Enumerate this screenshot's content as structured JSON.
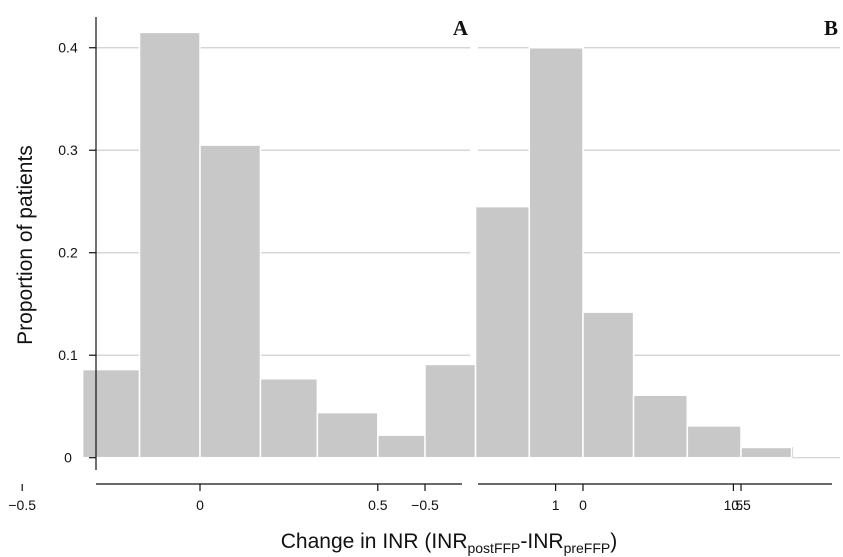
{
  "chart_data": [
    {
      "type": "bar",
      "panel": "A",
      "bin_edges": [
        -0.33,
        -0.17,
        0.0,
        0.17,
        0.33,
        0.5,
        0.67,
        0.83,
        1.0,
        1.17,
        1.33,
        1.5,
        1.67
      ],
      "values": [
        0.086,
        0.415,
        0.305,
        0.077,
        0.044,
        0.022,
        0.011,
        0.011,
        0.0,
        0.022,
        0.0,
        0.011
      ],
      "xlim": [
        -0.7,
        1.7
      ],
      "ylim": [
        -0.012,
        0.43
      ],
      "x_ticks": [
        -0.5,
        0,
        0.5,
        1,
        1.5
      ],
      "x_tick_labels": [
        "−0.5",
        "0",
        "0.5",
        "1",
        "1.5"
      ],
      "y_ticks": [
        0,
        0.1,
        0.2,
        0.3,
        0.4
      ],
      "y_tick_labels": [
        "0",
        "0.1",
        "0.2",
        "0.3",
        "0.4"
      ],
      "grid": true
    },
    {
      "type": "bar",
      "panel": "B",
      "bin_edges": [
        -0.5,
        -0.34,
        -0.17,
        0.0,
        0.16,
        0.33,
        0.5,
        0.66,
        0.83,
        1.0,
        1.16,
        1.33
      ],
      "values": [
        0.091,
        0.245,
        0.4,
        0.142,
        0.061,
        0.031,
        0.01,
        0.0,
        0.0,
        0.0,
        0.02
      ],
      "xlim": [
        -0.7,
        1.7
      ],
      "ylim": [
        -0.012,
        0.43
      ],
      "x_ticks": [
        -0.5,
        0,
        0.5,
        1,
        1.5
      ],
      "x_tick_labels": [
        "−0.5",
        "0",
        "0.5",
        "1",
        "1.5"
      ],
      "y_ticks": [
        0,
        0.1,
        0.2,
        0.3,
        0.4
      ],
      "grid": true
    }
  ],
  "ylabel": "Proportion of patients",
  "xlabel": {
    "main": "Change in INR (INR",
    "sub1": "postFFP",
    "mid": "-INR",
    "sub2": "preFFP",
    "end": ")"
  },
  "colors": {
    "bar": "#c8c8c8",
    "grid": "#cfcfcf",
    "axis": "#111111"
  }
}
